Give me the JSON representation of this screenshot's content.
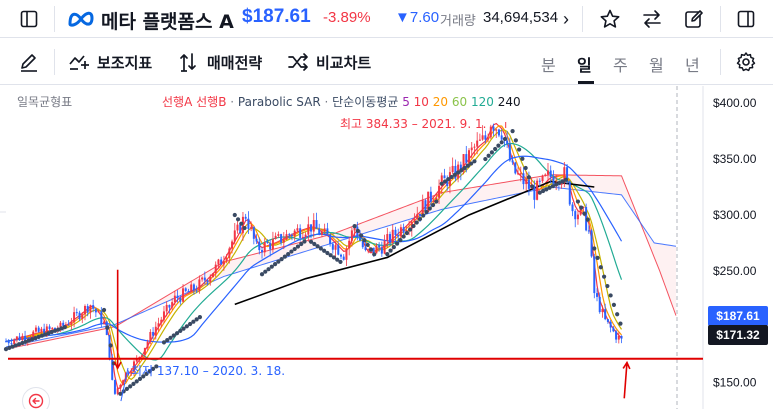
{
  "header": {
    "symbol_name": "메타 플랫폼스 A",
    "price": "$187.61",
    "change_pct": "-3.89%",
    "change_abs": "▼7.60",
    "volume_label": "거래량",
    "volume": "34,694,534",
    "more": "›"
  },
  "toolbar": {
    "indicators_label": "보조지표",
    "strategy_label": "매매전략",
    "compare_label": "비교차트",
    "timeframes": [
      "분",
      "일",
      "주",
      "월",
      "년"
    ],
    "active_timeframe": "일"
  },
  "legend": {
    "title": "일목균형표",
    "ichimoku_a": "선행A",
    "ichimoku_b": "선행B",
    "dot1": " · ",
    "psar": "Parabolic SAR",
    "dot2": " · ",
    "sma_label": "단순이동평균",
    "sma_5": "5",
    "sma_10": "10",
    "sma_20": "20",
    "sma_60": "60",
    "sma_120": "120",
    "sma_240": "240"
  },
  "annotations": {
    "high": "최고 384.33 – 2021. 9. 1.",
    "low": "최저 137.10 – 2020. 3. 18."
  },
  "price_tags": {
    "current": "$187.61",
    "line": "$171.32"
  },
  "colors": {
    "accent": "#2962ff",
    "down": "#f23645",
    "candle_up": "#f23645",
    "candle_down": "#2962ff",
    "psar": "#3a4a63",
    "sma5": "#f23645",
    "sma10": "#ff9800",
    "sma20": "#c6b400",
    "sma60": "#22ab94",
    "sma120": "#2962ff",
    "sma240": "#000000",
    "span_a": "#f23645",
    "span_b": "#2962ff",
    "manual_line": "#e00000"
  },
  "icons": {
    "layout": "sidebar-layout-icon",
    "meta_logo": "meta-logo-icon",
    "star": "star-icon",
    "swap": "swap-arrows-icon",
    "edit": "edit-icon",
    "panel": "panel-icon",
    "draw": "pencil-icon",
    "indicators": "indicators-icon",
    "strategy": "strategy-icon",
    "compare": "compare-icon",
    "settings": "gear-icon",
    "back": "back-arrow-icon"
  },
  "chart_data": {
    "type": "candlestick",
    "y_axis": {
      "ylim": [
        130,
        410
      ],
      "ticks": [
        150,
        200,
        250,
        300,
        350,
        400
      ],
      "tick_labels": [
        "$150.00",
        "$200.00",
        "$250.00",
        "$300.00",
        "$350.00",
        "$400.00"
      ]
    },
    "x_range_dates": [
      "2019-09",
      "2022-03"
    ],
    "horizontal_line": 171.32,
    "last_price": 187.61,
    "high": {
      "value": 384.33,
      "date": "2021-09-01"
    },
    "low": {
      "value": 137.1,
      "date": "2020-03-18"
    },
    "price_path": [
      [
        0,
        187
      ],
      [
        10,
        194
      ],
      [
        20,
        199
      ],
      [
        26,
        210
      ],
      [
        31,
        220
      ],
      [
        36,
        203
      ],
      [
        38,
        176
      ],
      [
        39,
        150
      ],
      [
        40,
        140
      ],
      [
        43,
        155
      ],
      [
        48,
        170
      ],
      [
        55,
        200
      ],
      [
        62,
        225
      ],
      [
        70,
        235
      ],
      [
        78,
        255
      ],
      [
        85,
        285
      ],
      [
        88,
        300
      ],
      [
        92,
        270
      ],
      [
        98,
        275
      ],
      [
        106,
        285
      ],
      [
        112,
        290
      ],
      [
        118,
        280
      ],
      [
        124,
        265
      ],
      [
        128,
        290
      ],
      [
        132,
        265
      ],
      [
        138,
        272
      ],
      [
        146,
        290
      ],
      [
        154,
        310
      ],
      [
        160,
        328
      ],
      [
        166,
        340
      ],
      [
        172,
        360
      ],
      [
        176,
        368
      ],
      [
        178,
        384
      ],
      [
        182,
        375
      ],
      [
        186,
        340
      ],
      [
        190,
        330
      ],
      [
        194,
        320
      ],
      [
        199,
        334
      ],
      [
        205,
        336
      ],
      [
        208,
        305
      ],
      [
        212,
        300
      ],
      [
        214,
        285
      ],
      [
        216,
        230
      ],
      [
        220,
        205
      ],
      [
        224,
        192
      ],
      [
        226,
        187.6
      ]
    ],
    "span_a_path": [
      [
        0,
        180
      ],
      [
        40,
        200
      ],
      [
        80,
        258
      ],
      [
        120,
        283
      ],
      [
        160,
        320
      ],
      [
        200,
        336
      ],
      [
        226,
        335
      ],
      [
        240,
        250
      ],
      [
        246,
        210
      ]
    ],
    "span_b_path": [
      [
        0,
        182
      ],
      [
        40,
        202
      ],
      [
        80,
        245
      ],
      [
        120,
        275
      ],
      [
        160,
        305
      ],
      [
        200,
        325
      ],
      [
        226,
        318
      ],
      [
        238,
        275
      ],
      [
        246,
        272
      ]
    ],
    "sma240_path": [
      [
        84,
        220
      ],
      [
        110,
        243
      ],
      [
        140,
        262
      ],
      [
        170,
        300
      ],
      [
        200,
        330
      ],
      [
        216,
        325
      ]
    ],
    "psar_paths": [
      [
        [
          0,
          180
        ],
        [
          22,
          200
        ]
      ],
      [
        [
          36,
          215
        ],
        [
          40,
          162
        ]
      ],
      [
        [
          42,
          140
        ],
        [
          56,
          166
        ]
      ],
      [
        [
          58,
          186
        ],
        [
          72,
          210
        ]
      ],
      [
        [
          84,
          300
        ],
        [
          88,
          287
        ]
      ],
      [
        [
          94,
          247
        ],
        [
          110,
          277
        ]
      ],
      [
        [
          112,
          276
        ],
        [
          124,
          256
        ]
      ],
      [
        [
          128,
          290
        ],
        [
          136,
          262
        ]
      ],
      [
        [
          140,
          265
        ],
        [
          158,
          312
        ]
      ],
      [
        [
          160,
          328
        ],
        [
          172,
          348
        ]
      ],
      [
        [
          176,
          350
        ],
        [
          184,
          370
        ]
      ],
      [
        [
          186,
          375
        ],
        [
          194,
          320
        ]
      ],
      [
        [
          196,
          320
        ],
        [
          206,
          332
        ]
      ],
      [
        [
          210,
          312
        ],
        [
          214,
          294
        ]
      ],
      [
        [
          216,
          270
        ],
        [
          226,
          200
        ]
      ]
    ],
    "manual_arrows": [
      {
        "from": [
          41,
          251
        ],
        "to": [
          41,
          163
        ]
      },
      {
        "from": [
          227,
          136
        ],
        "to": [
          228,
          168
        ]
      }
    ]
  }
}
